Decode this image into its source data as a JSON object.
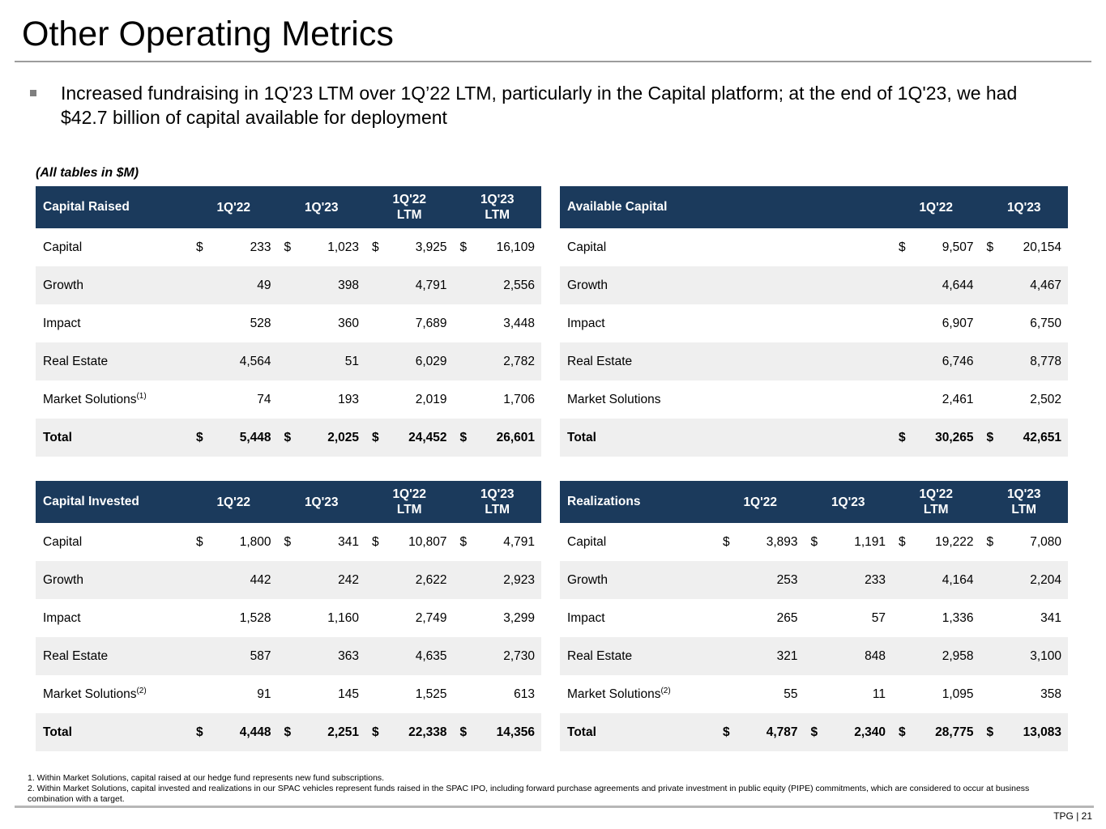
{
  "colors": {
    "table_header_bg": "#1b3a5c",
    "row_stripe": "#efefef",
    "bullet_marker": "#7f7f7f",
    "rule_gray": "#9c9c9c"
  },
  "slide": {
    "title": "Other Operating Metrics",
    "bullet": "Increased fundraising in 1Q'23 LTM over 1Q’22 LTM, particularly in the Capital platform; at the end of 1Q'23, we had $42.7 billion of capital available for deployment",
    "tables_note": "(All tables in $M)",
    "footnotes": {
      "note1": "1. Within Market Solutions, capital raised at our hedge fund represents new fund subscriptions.",
      "note2": "2. Within Market Solutions, capital invested and realizations in our SPAC vehicles represent funds raised in the SPAC IPO, including forward purchase agreements and private investment in public equity (PIPE) commitments, which are considered to occur at business combination with a target."
    },
    "footer": "TPG | 21"
  },
  "tables": [
    {
      "title": "Capital Raised",
      "columns": [
        "1Q'22",
        "1Q'23",
        "1Q'22\nLTM",
        "1Q'23\nLTM"
      ],
      "rows": [
        {
          "label": "Capital",
          "dollar_sign": "$",
          "values": [
            "233",
            "1,023",
            "3,925",
            "16,109"
          ]
        },
        {
          "label": "Growth",
          "values": [
            "49",
            "398",
            "4,791",
            "2,556"
          ]
        },
        {
          "label": "Impact",
          "values": [
            "528",
            "360",
            "7,689",
            "3,448"
          ]
        },
        {
          "label": "Real Estate",
          "values": [
            "4,564",
            "51",
            "6,029",
            "2,782"
          ]
        },
        {
          "label": "Market Solutions",
          "sup": "(1)",
          "values": [
            "74",
            "193",
            "2,019",
            "1,706"
          ]
        },
        {
          "label": "Total",
          "bold": true,
          "dollar_sign": "$",
          "values": [
            "5,448",
            "2,025",
            "24,452",
            "26,601"
          ]
        }
      ]
    },
    {
      "title": "Available Capital",
      "columns": [
        "1Q'22",
        "1Q'23"
      ],
      "rows": [
        {
          "label": "Capital",
          "dollar_sign": "$",
          "values": [
            "9,507",
            "20,154"
          ]
        },
        {
          "label": "Growth",
          "values": [
            "4,644",
            "4,467"
          ]
        },
        {
          "label": "Impact",
          "values": [
            "6,907",
            "6,750"
          ]
        },
        {
          "label": "Real Estate",
          "values": [
            "6,746",
            "8,778"
          ]
        },
        {
          "label": "Market Solutions",
          "values": [
            "2,461",
            "2,502"
          ]
        },
        {
          "label": "Total",
          "bold": true,
          "dollar_sign": "$",
          "values": [
            "30,265",
            "42,651"
          ]
        }
      ]
    },
    {
      "title": "Capital Invested",
      "columns": [
        "1Q'22",
        "1Q'23",
        "1Q'22\nLTM",
        "1Q'23\nLTM"
      ],
      "rows": [
        {
          "label": "Capital",
          "dollar_sign": "$",
          "values": [
            "1,800",
            "341",
            "10,807",
            "4,791"
          ]
        },
        {
          "label": "Growth",
          "values": [
            "442",
            "242",
            "2,622",
            "2,923"
          ]
        },
        {
          "label": "Impact",
          "values": [
            "1,528",
            "1,160",
            "2,749",
            "3,299"
          ]
        },
        {
          "label": "Real Estate",
          "values": [
            "587",
            "363",
            "4,635",
            "2,730"
          ]
        },
        {
          "label": "Market Solutions",
          "sup": "(2)",
          "values": [
            "91",
            "145",
            "1,525",
            "613"
          ]
        },
        {
          "label": "Total",
          "bold": true,
          "dollar_sign": "$",
          "values": [
            "4,448",
            "2,251",
            "22,338",
            "14,356"
          ]
        }
      ]
    },
    {
      "title": "Realizations",
      "columns": [
        "1Q'22",
        "1Q'23",
        "1Q'22\nLTM",
        "1Q'23\nLTM"
      ],
      "rows": [
        {
          "label": "Capital",
          "dollar_sign": "$",
          "values": [
            "3,893",
            "1,191",
            "19,222",
            "7,080"
          ]
        },
        {
          "label": "Growth",
          "values": [
            "253",
            "233",
            "4,164",
            "2,204"
          ]
        },
        {
          "label": "Impact",
          "values": [
            "265",
            "57",
            "1,336",
            "341"
          ]
        },
        {
          "label": "Real Estate",
          "values": [
            "321",
            "848",
            "2,958",
            "3,100"
          ]
        },
        {
          "label": "Market Solutions",
          "sup": "(2)",
          "values": [
            "55",
            "11",
            "1,095",
            "358"
          ]
        },
        {
          "label": "Total",
          "bold": true,
          "dollar_sign": "$",
          "values": [
            "4,787",
            "2,340",
            "28,775",
            "13,083"
          ]
        }
      ]
    }
  ]
}
